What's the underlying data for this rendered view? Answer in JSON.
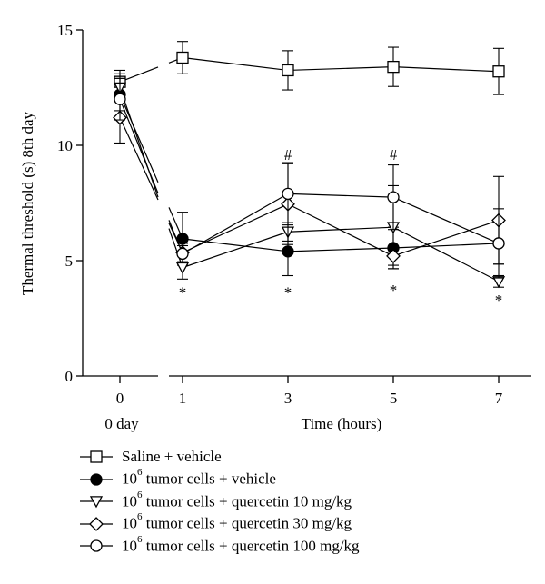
{
  "chart_data": {
    "type": "line",
    "ylabel": "Thermal threshold (s) 8th day",
    "xlabel": "Time (hours)",
    "x_baseline_label": "0 day",
    "ylim": [
      0,
      15
    ],
    "yticks": [
      "0",
      "5",
      "10",
      "15"
    ],
    "xticks": [
      {
        "pos": 0,
        "label": "0"
      },
      {
        "pos": 1,
        "label": "1"
      },
      {
        "pos": 3,
        "label": "3"
      },
      {
        "pos": 5,
        "label": "5"
      },
      {
        "pos": 7,
        "label": "7"
      }
    ],
    "series": [
      {
        "name": "Saline + vehicle",
        "marker": "square",
        "x": [
          0,
          1,
          3,
          5,
          7
        ],
        "y": [
          12.75,
          13.8,
          13.25,
          13.4,
          13.2
        ],
        "err": [
          0.5,
          0.7,
          0.85,
          0.85,
          1.0
        ]
      },
      {
        "name": "10^6 tumor cells + vehicle",
        "marker": "filled-circle",
        "x": [
          0,
          1,
          3,
          5,
          7
        ],
        "y": [
          12.2,
          5.95,
          5.4,
          5.55,
          5.75
        ],
        "err": [
          0.7,
          1.15,
          1.05,
          0.9,
          0.9
        ]
      },
      {
        "name": "10^6 tumor cells + quercetin 10 mg/kg",
        "marker": "triangle-down",
        "x": [
          0,
          1,
          3,
          5,
          7
        ],
        "y": [
          12.5,
          4.7,
          6.25,
          6.45,
          4.1
        ],
        "err": [
          0.6,
          0.5,
          0.4,
          1.8,
          0.25
        ]
      },
      {
        "name": "10^6 tumor cells + quercetin 30 mg/kg",
        "marker": "diamond",
        "x": [
          0,
          1,
          3,
          5,
          7
        ],
        "y": [
          11.2,
          5.35,
          7.45,
          5.2,
          6.75
        ],
        "err": [
          1.1,
          0.4,
          1.75,
          0.4,
          1.9
        ]
      },
      {
        "name": "10^6 tumor cells + quercetin 100 mg/kg",
        "marker": "open-circle",
        "x": [
          0,
          1,
          3,
          5,
          7
        ],
        "y": [
          12.0,
          5.3,
          7.9,
          7.75,
          5.75
        ],
        "err": [
          0.9,
          0.35,
          1.35,
          1.4,
          1.5
        ]
      }
    ],
    "annotations": [
      {
        "x": 1,
        "y": 3.65,
        "text": "*"
      },
      {
        "x": 3,
        "y": 3.65,
        "text": "*"
      },
      {
        "x": 5,
        "y": 3.75,
        "text": "*"
      },
      {
        "x": 7,
        "y": 3.3,
        "text": "*"
      },
      {
        "x": 3,
        "y": 9.6,
        "text": "#"
      },
      {
        "x": 5,
        "y": 9.6,
        "text": "#"
      }
    ]
  },
  "legend": [
    {
      "marker": "square",
      "base": "Saline + vehicle",
      "sup": "",
      "rest": ""
    },
    {
      "marker": "filled-circle",
      "base": "10",
      "sup": "6",
      "rest": " tumor cells + vehicle"
    },
    {
      "marker": "triangle-down",
      "base": "10",
      "sup": "6",
      "rest": " tumor cells + quercetin 10 mg/kg"
    },
    {
      "marker": "diamond",
      "base": "10",
      "sup": "6",
      "rest": " tumor cells + quercetin 30 mg/kg"
    },
    {
      "marker": "open-circle",
      "base": "10",
      "sup": "6",
      "rest": " tumor cells + quercetin 100 mg/kg"
    }
  ]
}
